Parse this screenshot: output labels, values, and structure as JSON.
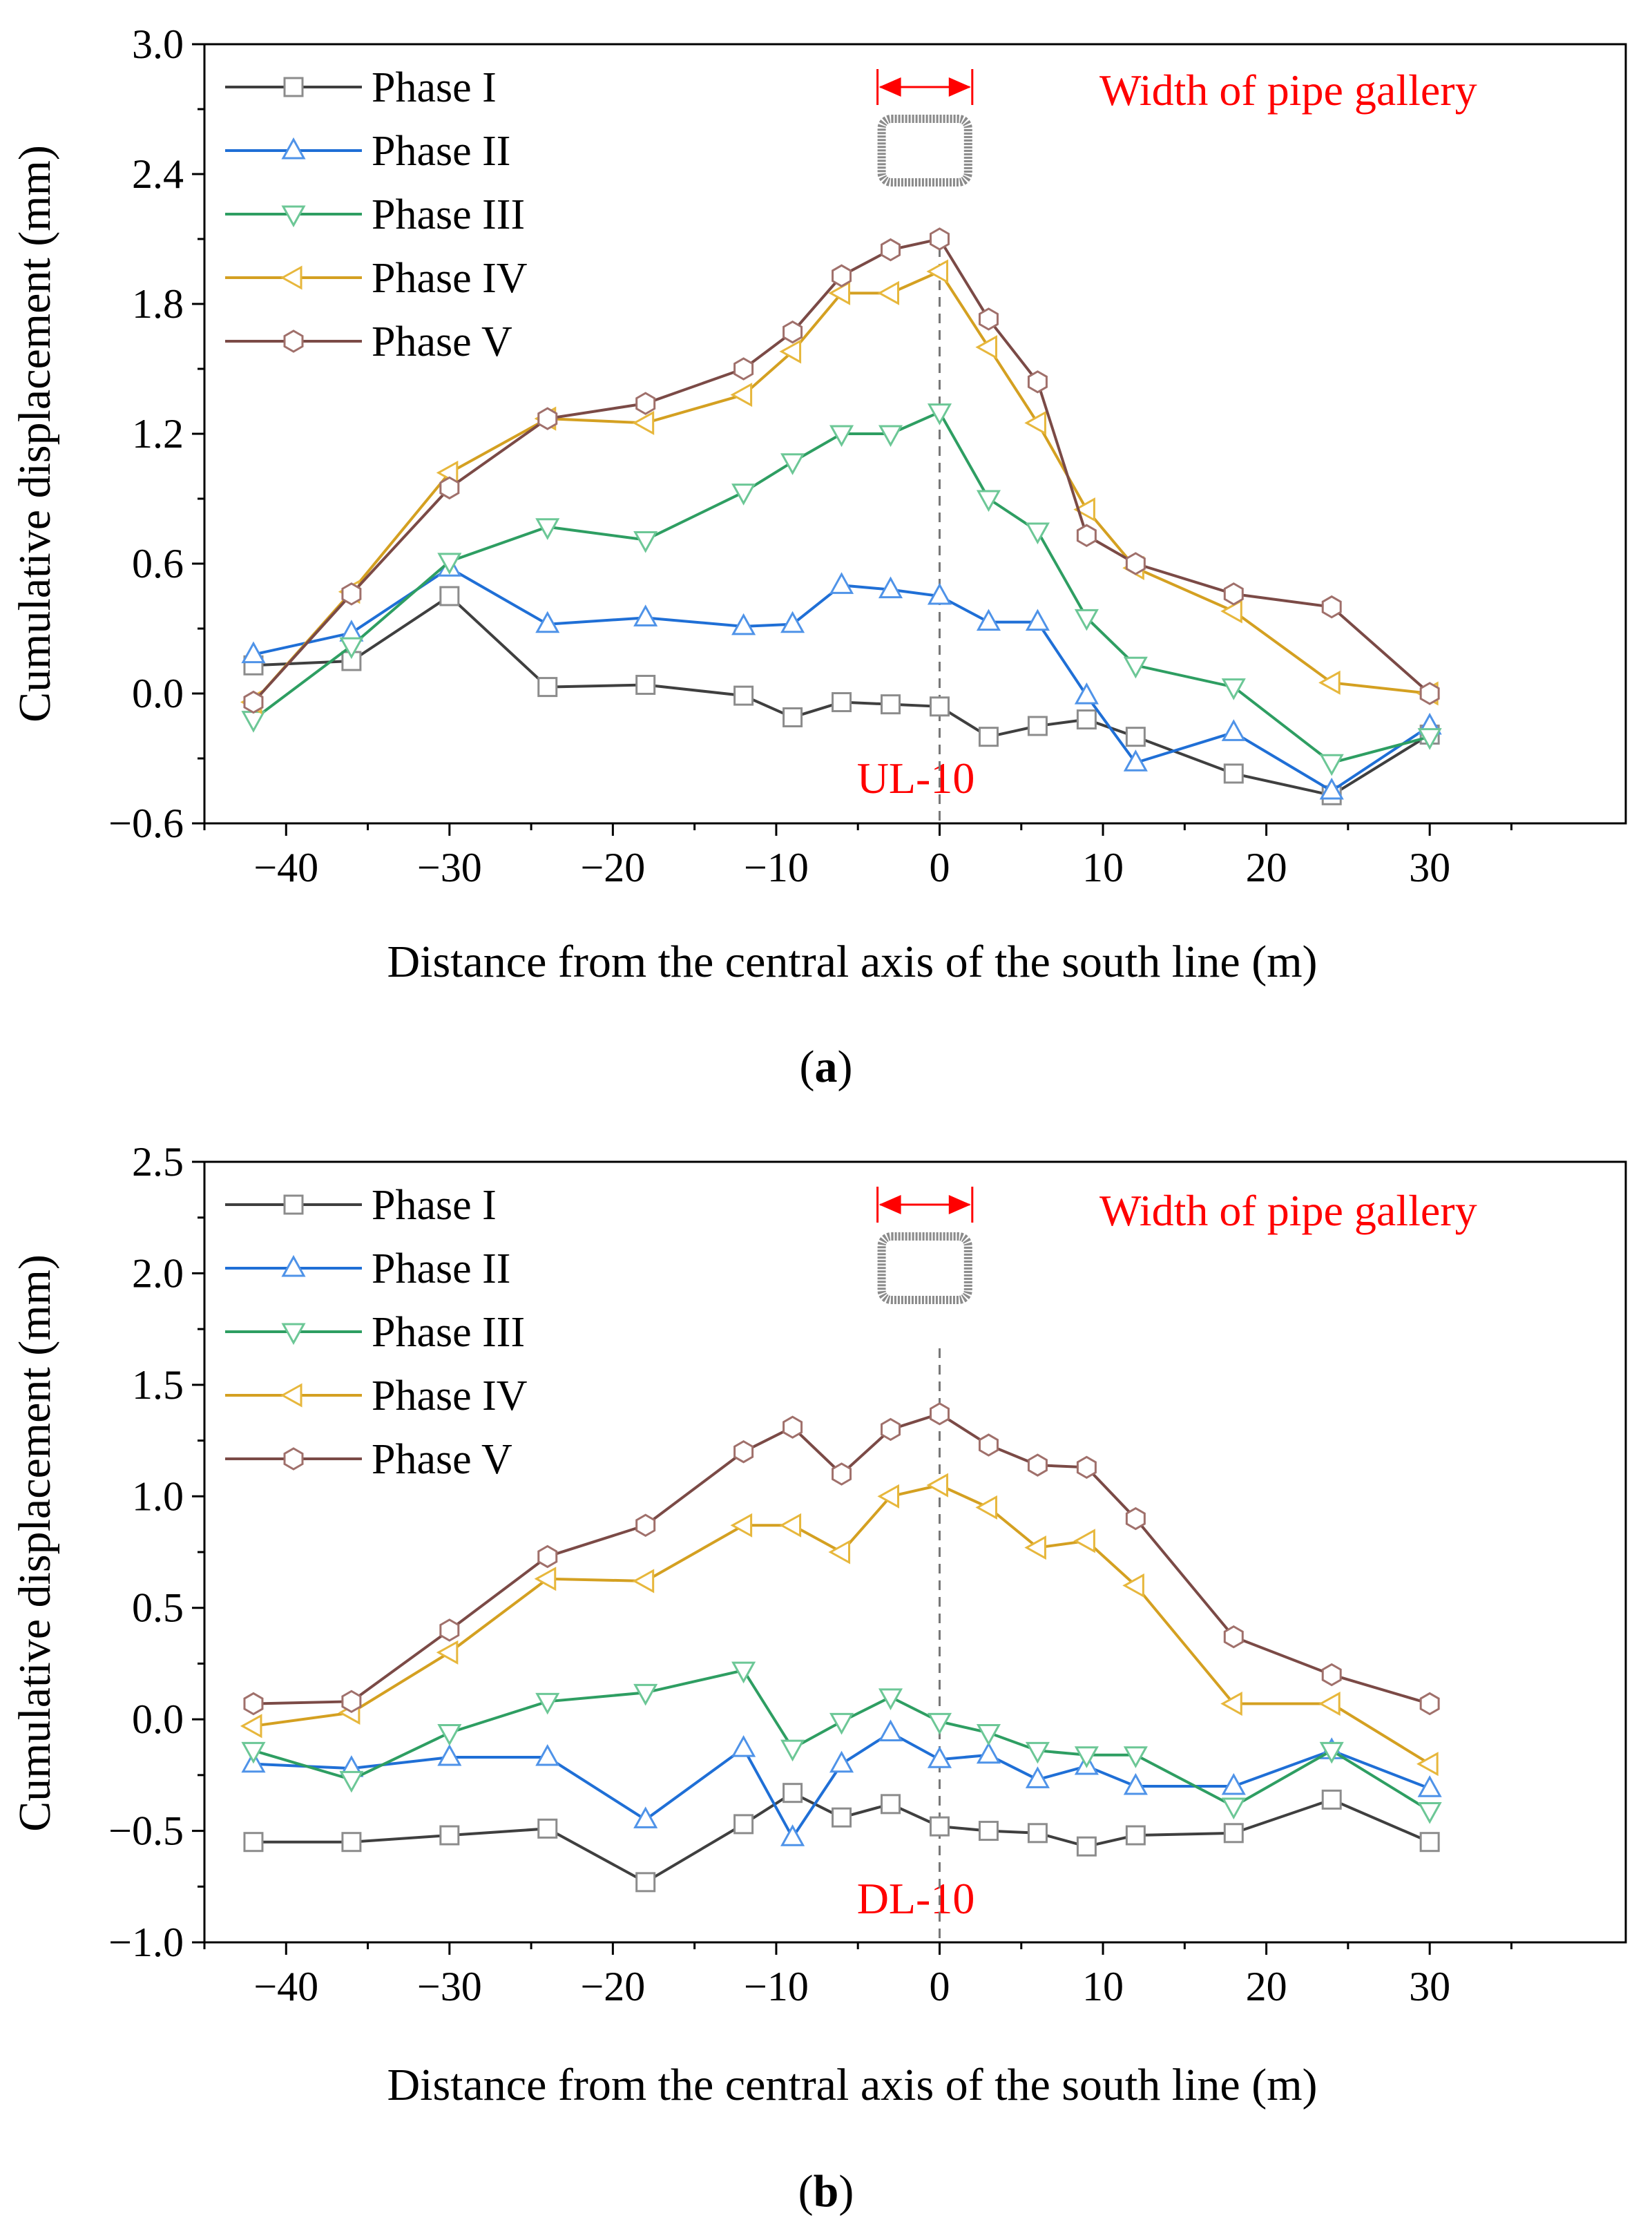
{
  "chart_data": [
    {
      "type": "line",
      "panel_label": "(a)",
      "label_parts": [
        "(",
        "a",
        ")"
      ],
      "section_label": "UL-10",
      "gallery_label": "Width of pipe gallery",
      "xlabel": "Distance from the central axis of the south line (m)",
      "ylabel": "Cumulative displacement (mm)",
      "xlim": [
        -45,
        42
      ],
      "ylim": [
        -0.6,
        3.0
      ],
      "xticks": [
        -40,
        -30,
        -20,
        -10,
        0,
        10,
        20,
        30
      ],
      "xtick_labels": [
        "−40",
        "−30",
        "−20",
        "−10",
        "0",
        "10",
        "20",
        "30"
      ],
      "yticks": [
        -0.6,
        0.0,
        0.6,
        1.2,
        1.8,
        2.4,
        3.0
      ],
      "ytick_labels": [
        "−0.6",
        "0.0",
        "0.6",
        "1.2",
        "1.8",
        "2.4",
        "3.0"
      ],
      "grid": false,
      "legend_position": "top-left",
      "center_line_x": 0,
      "gallery_x": [
        -3.8,
        2.0
      ],
      "x": [
        -42,
        -36,
        -30,
        -24,
        -18,
        -12,
        -9,
        -6,
        -3,
        0,
        3,
        6,
        9,
        12,
        18,
        24,
        30
      ],
      "series": [
        {
          "name": "Phase I",
          "marker": "square",
          "color": "#3f3f3f",
          "marker_color": "#8c8c8c",
          "values": [
            0.13,
            0.15,
            0.45,
            0.03,
            0.04,
            -0.01,
            -0.11,
            -0.04,
            -0.05,
            -0.06,
            -0.2,
            -0.15,
            -0.12,
            -0.2,
            -0.37,
            -0.47,
            -0.19
          ]
        },
        {
          "name": "Phase II",
          "marker": "triangle-up",
          "color": "#1f6fd6",
          "marker_color": "#4f93e8",
          "values": [
            0.18,
            0.28,
            0.58,
            0.32,
            0.35,
            0.31,
            0.32,
            0.5,
            0.48,
            0.45,
            0.33,
            0.33,
            -0.01,
            -0.32,
            -0.18,
            -0.45,
            -0.15
          ]
        },
        {
          "name": "Phase III",
          "marker": "triangle-down",
          "color": "#2e9e62",
          "marker_color": "#6cc796",
          "values": [
            -0.12,
            0.22,
            0.61,
            0.77,
            0.71,
            0.93,
            1.07,
            1.2,
            1.2,
            1.3,
            0.9,
            0.75,
            0.35,
            0.13,
            0.03,
            -0.32,
            -0.2
          ]
        },
        {
          "name": "Phase IV",
          "marker": "triangle-left",
          "color": "#d4a021",
          "marker_color": "#e7b73c",
          "values": [
            -0.04,
            0.47,
            1.02,
            1.27,
            1.25,
            1.38,
            1.58,
            1.85,
            1.85,
            1.95,
            1.6,
            1.25,
            0.85,
            0.58,
            0.38,
            0.05,
            0.0
          ]
        },
        {
          "name": "Phase V",
          "marker": "hexagon",
          "color": "#7b4a46",
          "marker_color": "#a0706b",
          "values": [
            -0.04,
            0.46,
            0.95,
            1.27,
            1.34,
            1.5,
            1.67,
            1.93,
            2.05,
            2.1,
            1.73,
            1.44,
            0.73,
            0.6,
            0.46,
            0.4,
            0.0
          ]
        }
      ]
    },
    {
      "type": "line",
      "panel_label": "(b)",
      "label_parts": [
        "(",
        "b",
        ")"
      ],
      "section_label": "DL-10",
      "gallery_label": "Width of pipe gallery",
      "xlabel": "Distance from the central axis of the south line (m)",
      "ylabel": "Cumulative displacement (mm)",
      "xlim": [
        -45,
        42
      ],
      "ylim": [
        -1.0,
        2.5
      ],
      "xticks": [
        -40,
        -30,
        -20,
        -10,
        0,
        10,
        20,
        30
      ],
      "xtick_labels": [
        "−40",
        "−30",
        "−20",
        "−10",
        "0",
        "10",
        "20",
        "30"
      ],
      "yticks": [
        -1.0,
        -0.5,
        0.0,
        0.5,
        1.0,
        1.5,
        2.0,
        2.5
      ],
      "ytick_labels": [
        "−1.0",
        "−0.5",
        "0.0",
        "0.5",
        "1.0",
        "1.5",
        "2.0",
        "2.5"
      ],
      "grid": false,
      "legend_position": "top-left",
      "center_line_x": 0,
      "gallery_x": [
        -3.8,
        2.0
      ],
      "x": [
        -42,
        -36,
        -30,
        -24,
        -18,
        -12,
        -9,
        -6,
        -3,
        0,
        3,
        6,
        9,
        12,
        18,
        24,
        30
      ],
      "series": [
        {
          "name": "Phase I",
          "marker": "square",
          "color": "#3f3f3f",
          "marker_color": "#8c8c8c",
          "values": [
            -0.55,
            -0.55,
            -0.52,
            -0.49,
            -0.73,
            -0.47,
            -0.33,
            -0.44,
            -0.38,
            -0.48,
            -0.5,
            -0.51,
            -0.57,
            -0.52,
            -0.51,
            -0.36,
            -0.55
          ]
        },
        {
          "name": "Phase II",
          "marker": "triangle-up",
          "color": "#1f6fd6",
          "marker_color": "#4f93e8",
          "values": [
            -0.2,
            -0.22,
            -0.17,
            -0.17,
            -0.45,
            -0.13,
            -0.53,
            -0.2,
            -0.06,
            -0.18,
            -0.16,
            -0.27,
            -0.21,
            -0.3,
            -0.3,
            -0.14,
            -0.31
          ]
        },
        {
          "name": "Phase III",
          "marker": "triangle-down",
          "color": "#2e9e62",
          "marker_color": "#6cc796",
          "values": [
            -0.14,
            -0.27,
            -0.06,
            0.08,
            0.12,
            0.22,
            -0.13,
            -0.01,
            0.1,
            -0.01,
            -0.06,
            -0.14,
            -0.16,
            -0.16,
            -0.39,
            -0.14,
            -0.41
          ]
        },
        {
          "name": "Phase IV",
          "marker": "triangle-left",
          "color": "#d4a021",
          "marker_color": "#e7b73c",
          "values": [
            -0.03,
            0.03,
            0.3,
            0.63,
            0.62,
            0.87,
            0.87,
            0.75,
            1.0,
            1.05,
            0.95,
            0.77,
            0.8,
            0.6,
            0.07,
            0.07,
            -0.2
          ]
        },
        {
          "name": "Phase V",
          "marker": "hexagon",
          "color": "#7b4a46",
          "marker_color": "#a0706b",
          "values": [
            0.07,
            0.08,
            0.4,
            0.73,
            0.87,
            1.2,
            1.31,
            1.1,
            1.3,
            1.37,
            1.23,
            1.14,
            1.13,
            0.9,
            0.37,
            0.2,
            0.07
          ]
        }
      ]
    }
  ]
}
